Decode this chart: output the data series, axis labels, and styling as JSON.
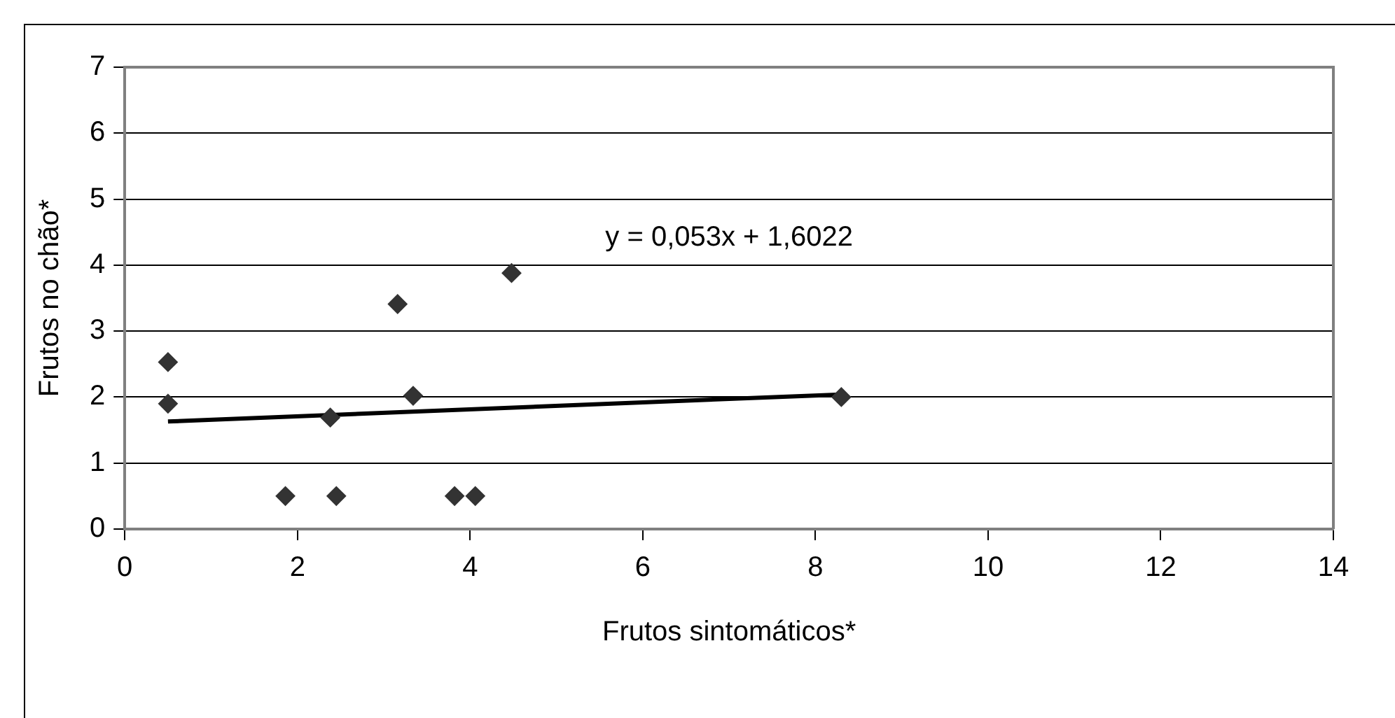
{
  "chart_data": {
    "type": "scatter",
    "xlabel": "Frutos sintomáticos*",
    "ylabel": "Frutos no chão*",
    "series": [
      {
        "color": "#333333",
        "marker": "diamond",
        "x": [
          0.5,
          0.5,
          1.86,
          2.38,
          2.45,
          3.16,
          3.34,
          3.82,
          4.06,
          4.48,
          8.3
        ],
        "values": [
          2.53,
          1.9,
          0.5,
          1.69,
          0.5,
          3.41,
          2.02,
          0.5,
          0.5,
          3.88,
          2.0
        ]
      },
      {
        "type": "line",
        "marker": "none",
        "color": "#000000",
        "x": [
          0.5,
          8.3
        ],
        "values": [
          1.63,
          2.04
        ]
      }
    ],
    "xlim": [
      0,
      14
    ],
    "xticks": [
      0,
      2,
      4,
      6,
      8,
      10,
      12,
      14
    ],
    "ylim": [
      0,
      7
    ],
    "yticks": [
      0,
      1,
      2,
      3,
      4,
      5,
      6,
      7
    ],
    "grid": "y",
    "legend": false,
    "annotations": [
      "y = 0,053x + 1,6022"
    ]
  }
}
